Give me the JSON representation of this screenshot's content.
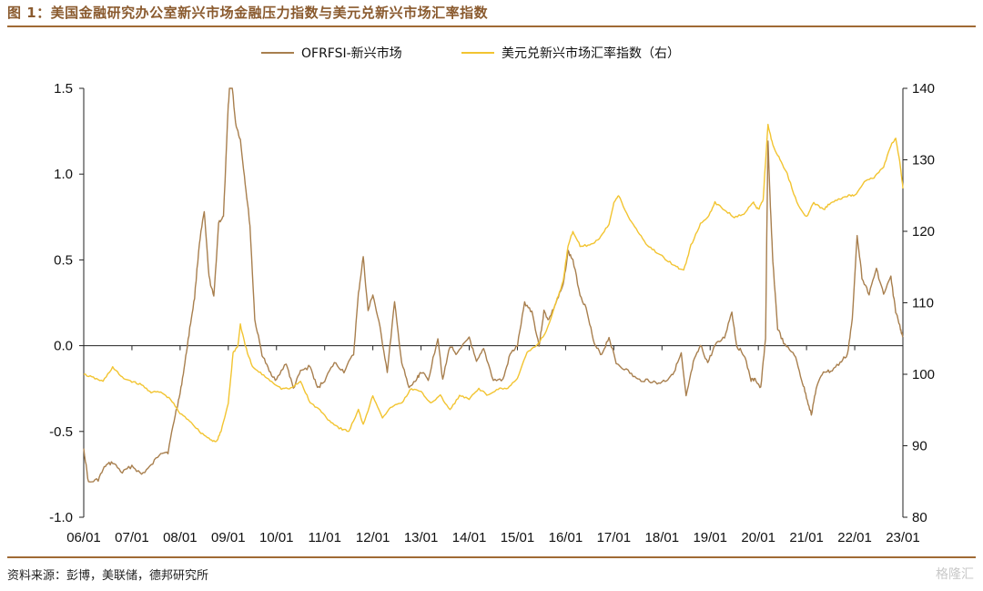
{
  "page": {
    "title": "图 1：美国金融研究办公室新兴市场金融压力指数与美元兑新兴市场汇率指数",
    "source": "资料来源：彭博，美联储，德邦研究所",
    "watermark": "格隆汇"
  },
  "chart_data": {
    "type": "line",
    "x_tick_labels": [
      "06/01",
      "07/01",
      "08/01",
      "09/01",
      "10/01",
      "11/01",
      "12/01",
      "13/01",
      "14/01",
      "15/01",
      "16/01",
      "17/01",
      "18/01",
      "19/01",
      "20/01",
      "21/01",
      "22/01",
      "23/01"
    ],
    "y_left": {
      "ylim": [
        -1.0,
        1.5
      ],
      "ticks": [
        "1.5",
        "1.0",
        "0.5",
        "0.0",
        "-0.5",
        "-1.0"
      ]
    },
    "y_right": {
      "ylim": [
        80,
        140
      ],
      "ticks": [
        "140",
        "130",
        "120",
        "110",
        "100",
        "90",
        "80"
      ]
    },
    "legend_position": "top-center",
    "grid": false,
    "series": [
      {
        "name": "OFRFSI-新兴市场",
        "axis": "left",
        "color": "#a87f4e",
        "points": [
          [
            2006.0,
            -0.6
          ],
          [
            2006.1,
            -0.8
          ],
          [
            2006.3,
            -0.78
          ],
          [
            2006.45,
            -0.7
          ],
          [
            2006.6,
            -0.68
          ],
          [
            2006.8,
            -0.74
          ],
          [
            2007.0,
            -0.7
          ],
          [
            2007.2,
            -0.75
          ],
          [
            2007.4,
            -0.7
          ],
          [
            2007.6,
            -0.62
          ],
          [
            2007.75,
            -0.62
          ],
          [
            2007.9,
            -0.4
          ],
          [
            2008.0,
            -0.28
          ],
          [
            2008.1,
            -0.1
          ],
          [
            2008.2,
            0.1
          ],
          [
            2008.3,
            0.28
          ],
          [
            2008.4,
            0.6
          ],
          [
            2008.5,
            0.78
          ],
          [
            2008.6,
            0.4
          ],
          [
            2008.7,
            0.28
          ],
          [
            2008.8,
            0.72
          ],
          [
            2008.9,
            0.75
          ],
          [
            2009.0,
            1.4
          ],
          [
            2009.05,
            1.6
          ],
          [
            2009.15,
            1.3
          ],
          [
            2009.25,
            1.2
          ],
          [
            2009.35,
            0.95
          ],
          [
            2009.45,
            0.7
          ],
          [
            2009.55,
            0.15
          ],
          [
            2009.7,
            -0.05
          ],
          [
            2009.85,
            -0.15
          ],
          [
            2010.0,
            -0.2
          ],
          [
            2010.2,
            -0.1
          ],
          [
            2010.35,
            -0.25
          ],
          [
            2010.5,
            -0.15
          ],
          [
            2010.7,
            -0.12
          ],
          [
            2010.85,
            -0.25
          ],
          [
            2011.0,
            -0.2
          ],
          [
            2011.2,
            -0.1
          ],
          [
            2011.4,
            -0.15
          ],
          [
            2011.6,
            -0.05
          ],
          [
            2011.7,
            0.3
          ],
          [
            2011.8,
            0.52
          ],
          [
            2011.9,
            0.2
          ],
          [
            2012.0,
            0.3
          ],
          [
            2012.15,
            0.1
          ],
          [
            2012.3,
            -0.15
          ],
          [
            2012.45,
            0.25
          ],
          [
            2012.6,
            -0.1
          ],
          [
            2012.75,
            -0.25
          ],
          [
            2012.9,
            -0.2
          ],
          [
            2013.0,
            -0.15
          ],
          [
            2013.15,
            -0.2
          ],
          [
            2013.35,
            0.05
          ],
          [
            2013.45,
            -0.2
          ],
          [
            2013.6,
            0.0
          ],
          [
            2013.75,
            -0.05
          ],
          [
            2014.0,
            0.05
          ],
          [
            2014.15,
            -0.1
          ],
          [
            2014.3,
            -0.02
          ],
          [
            2014.5,
            -0.2
          ],
          [
            2014.7,
            -0.2
          ],
          [
            2014.85,
            -0.05
          ],
          [
            2015.0,
            0.0
          ],
          [
            2015.15,
            0.25
          ],
          [
            2015.3,
            0.2
          ],
          [
            2015.45,
            0.0
          ],
          [
            2015.55,
            0.2
          ],
          [
            2015.65,
            0.15
          ],
          [
            2015.8,
            0.25
          ],
          [
            2015.95,
            0.35
          ],
          [
            2016.05,
            0.55
          ],
          [
            2016.15,
            0.5
          ],
          [
            2016.3,
            0.3
          ],
          [
            2016.45,
            0.2
          ],
          [
            2016.6,
            0.0
          ],
          [
            2016.75,
            -0.05
          ],
          [
            2016.9,
            0.05
          ],
          [
            2017.05,
            -0.1
          ],
          [
            2017.3,
            -0.15
          ],
          [
            2017.5,
            -0.2
          ],
          [
            2017.7,
            -0.2
          ],
          [
            2017.9,
            -0.22
          ],
          [
            2018.1,
            -0.2
          ],
          [
            2018.25,
            -0.15
          ],
          [
            2018.4,
            -0.05
          ],
          [
            2018.5,
            -0.3
          ],
          [
            2018.65,
            -0.1
          ],
          [
            2018.8,
            0.0
          ],
          [
            2018.95,
            -0.1
          ],
          [
            2019.1,
            0.0
          ],
          [
            2019.3,
            0.05
          ],
          [
            2019.45,
            0.2
          ],
          [
            2019.55,
            0.0
          ],
          [
            2019.7,
            -0.05
          ],
          [
            2019.85,
            -0.2
          ],
          [
            2019.95,
            -0.2
          ],
          [
            2020.05,
            -0.25
          ],
          [
            2020.15,
            0.05
          ],
          [
            2020.2,
            1.2
          ],
          [
            2020.25,
            0.8
          ],
          [
            2020.3,
            0.5
          ],
          [
            2020.4,
            0.1
          ],
          [
            2020.55,
            0.0
          ],
          [
            2020.75,
            -0.05
          ],
          [
            2020.9,
            -0.2
          ],
          [
            2021.0,
            -0.3
          ],
          [
            2021.1,
            -0.4
          ],
          [
            2021.2,
            -0.25
          ],
          [
            2021.35,
            -0.15
          ],
          [
            2021.5,
            -0.15
          ],
          [
            2021.7,
            -0.1
          ],
          [
            2021.85,
            -0.05
          ],
          [
            2021.95,
            0.15
          ],
          [
            2022.05,
            0.65
          ],
          [
            2022.15,
            0.4
          ],
          [
            2022.3,
            0.3
          ],
          [
            2022.45,
            0.45
          ],
          [
            2022.6,
            0.3
          ],
          [
            2022.75,
            0.4
          ],
          [
            2022.85,
            0.2
          ],
          [
            2022.95,
            0.1
          ],
          [
            2023.0,
            0.05
          ]
        ]
      },
      {
        "name": "美元兑新兴市场汇率指数（右）",
        "axis": "right",
        "color": "#f2c431",
        "points": [
          [
            2006.0,
            100.0
          ],
          [
            2006.2,
            99.5
          ],
          [
            2006.4,
            99.0
          ],
          [
            2006.6,
            101.0
          ],
          [
            2006.8,
            99.5
          ],
          [
            2007.0,
            99.0
          ],
          [
            2007.2,
            98.5
          ],
          [
            2007.4,
            97.5
          ],
          [
            2007.6,
            97.5
          ],
          [
            2007.8,
            96.5
          ],
          [
            2008.0,
            94.5
          ],
          [
            2008.2,
            93.5
          ],
          [
            2008.4,
            92.0
          ],
          [
            2008.6,
            91.0
          ],
          [
            2008.75,
            90.5
          ],
          [
            2008.85,
            92.0
          ],
          [
            2009.0,
            96.0
          ],
          [
            2009.1,
            103.0
          ],
          [
            2009.2,
            104.0
          ],
          [
            2009.25,
            107.0
          ],
          [
            2009.35,
            104.0
          ],
          [
            2009.5,
            101.0
          ],
          [
            2009.7,
            100.0
          ],
          [
            2009.9,
            99.0
          ],
          [
            2010.1,
            98.0
          ],
          [
            2010.3,
            98.0
          ],
          [
            2010.5,
            99.0
          ],
          [
            2010.7,
            96.0
          ],
          [
            2010.9,
            95.0
          ],
          [
            2011.1,
            93.5
          ],
          [
            2011.3,
            92.5
          ],
          [
            2011.5,
            92.0
          ],
          [
            2011.7,
            95.0
          ],
          [
            2011.8,
            93.0
          ],
          [
            2012.0,
            97.0
          ],
          [
            2012.2,
            94.0
          ],
          [
            2012.4,
            95.5
          ],
          [
            2012.6,
            96.0
          ],
          [
            2012.8,
            98.0
          ],
          [
            2013.0,
            97.5
          ],
          [
            2013.2,
            96.0
          ],
          [
            2013.4,
            97.0
          ],
          [
            2013.6,
            95.0
          ],
          [
            2013.8,
            97.0
          ],
          [
            2014.0,
            96.5
          ],
          [
            2014.2,
            98.0
          ],
          [
            2014.4,
            97.0
          ],
          [
            2014.6,
            98.0
          ],
          [
            2014.8,
            98.0
          ],
          [
            2015.0,
            99.5
          ],
          [
            2015.2,
            103.0
          ],
          [
            2015.4,
            104.0
          ],
          [
            2015.6,
            106.0
          ],
          [
            2015.8,
            110.0
          ],
          [
            2015.95,
            113.0
          ],
          [
            2016.05,
            118.0
          ],
          [
            2016.15,
            120.0
          ],
          [
            2016.3,
            118.0
          ],
          [
            2016.5,
            118.0
          ],
          [
            2016.7,
            119.0
          ],
          [
            2016.9,
            121.0
          ],
          [
            2017.0,
            124.0
          ],
          [
            2017.1,
            125.0
          ],
          [
            2017.3,
            122.0
          ],
          [
            2017.5,
            120.0
          ],
          [
            2017.7,
            118.0
          ],
          [
            2017.9,
            117.0
          ],
          [
            2018.1,
            116.0
          ],
          [
            2018.3,
            115.0
          ],
          [
            2018.45,
            114.5
          ],
          [
            2018.6,
            118.0
          ],
          [
            2018.8,
            121.0
          ],
          [
            2018.95,
            122.0
          ],
          [
            2019.1,
            124.0
          ],
          [
            2019.3,
            123.0
          ],
          [
            2019.5,
            122.0
          ],
          [
            2019.7,
            122.5
          ],
          [
            2019.9,
            124.0
          ],
          [
            2020.0,
            123.0
          ],
          [
            2020.1,
            124.5
          ],
          [
            2020.2,
            135.0
          ],
          [
            2020.3,
            132.0
          ],
          [
            2020.45,
            130.0
          ],
          [
            2020.6,
            128.0
          ],
          [
            2020.8,
            124.0
          ],
          [
            2021.0,
            122.0
          ],
          [
            2021.15,
            124.0
          ],
          [
            2021.35,
            123.0
          ],
          [
            2021.5,
            124.0
          ],
          [
            2021.7,
            124.5
          ],
          [
            2021.85,
            125.0
          ],
          [
            2022.0,
            125.0
          ],
          [
            2022.2,
            127.0
          ],
          [
            2022.4,
            127.5
          ],
          [
            2022.6,
            129.0
          ],
          [
            2022.75,
            132.0
          ],
          [
            2022.85,
            133.0
          ],
          [
            2022.95,
            129.0
          ],
          [
            2023.0,
            126.0
          ]
        ]
      }
    ]
  }
}
